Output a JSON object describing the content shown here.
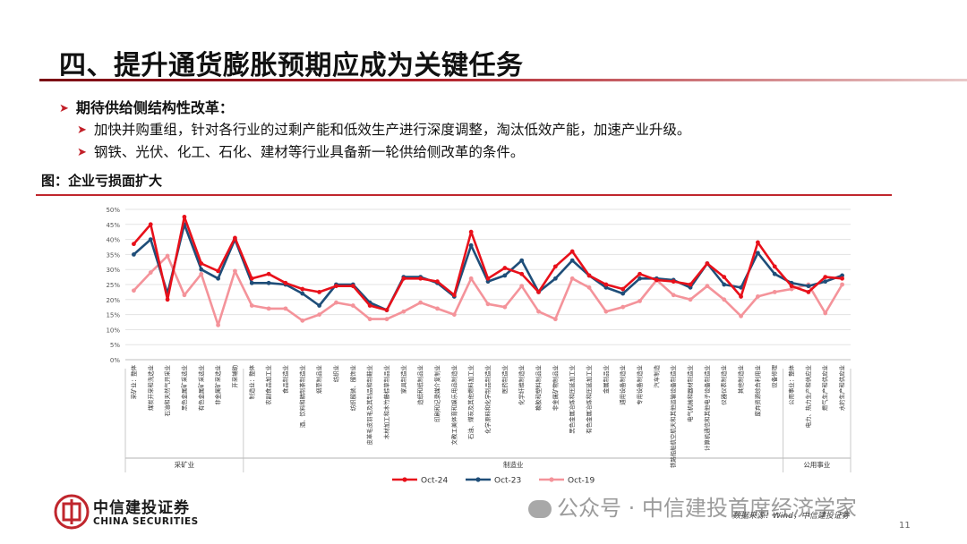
{
  "page": {
    "title": "四、提升通货膨胀预期应成为关键任务",
    "bullets": {
      "main": "期待供给侧结构性改革：",
      "sub1": "加快并购重组，针对各行业的过剩产能和低效生产进行深度调整，淘汰低效产能，加速产业升级。",
      "sub2": "钢铁、光伏、化工、石化、建材等行业具备新一轮供给侧改革的条件。"
    },
    "figure_title": "图：企业亏损面扩大",
    "source": "数据来源：Wind，中信建投证券",
    "page_number": "11",
    "logo": {
      "cn": "中信建投证券",
      "en": "CHINA SECURITIES"
    },
    "watermark": "公众号 · 中信建投首席经济学家"
  },
  "colors": {
    "oct24": "#e8101a",
    "oct23": "#1f4e79",
    "oct19": "#f4939a",
    "accent": "#c0262d"
  },
  "chart_data": {
    "type": "line",
    "title": "",
    "ylim": [
      0,
      50
    ],
    "yticks": [
      "0%",
      "5%",
      "10%",
      "15%",
      "20%",
      "25%",
      "30%",
      "35%",
      "40%",
      "45%",
      "50%"
    ],
    "grid": true,
    "legend_position": "bottom",
    "categories": [
      "采矿业：整体",
      "煤炭开采和洗选业",
      "石油和天然气开采业",
      "黑色金属矿采选业",
      "有色金属矿采选业",
      "非金属矿采选业",
      "开采辅助",
      "制造业：整体",
      "农副食品加工业",
      "食品制造业",
      "酒、饮料和精制茶制造业",
      "烟草制品业",
      "纺织业",
      "纺织服装、服饰业",
      "皮革毛皮羽毛及其制品和制鞋业",
      "木材加工和木竹藤棕草制品业",
      "家具制造业",
      "造纸和纸制品业",
      "印刷和记录媒介复制业",
      "文教工美体育和娱乐用品制造业",
      "石油、煤炭及其他燃料加工业",
      "化学原料和化学制品制造业",
      "医药制造业",
      "化学纤维制造业",
      "橡胶和塑料制品业",
      "非金属矿物制品业",
      "黑色金属冶炼和压延加工业",
      "有色金属冶炼和压延加工业",
      "金属制品业",
      "通用设备制造业",
      "专用设备制造业",
      "汽车制造",
      "铁路船舶航空航天和其他运输设备制造业",
      "电气机械和器材制造业",
      "计算机通信和其他电子设备制造业",
      "仪器仪表制造业",
      "其他制造业",
      "废弃资源综合利用业",
      "设备修理",
      "公用事业：整体",
      "电力、热力生产和供应业",
      "燃气生产和供应业",
      "水的生产和供应业"
    ],
    "groups": [
      {
        "name": "采矿业",
        "from": 0,
        "to": 6
      },
      {
        "name": "制造业",
        "from": 7,
        "to": 38
      },
      {
        "name": "公用事业",
        "from": 39,
        "to": 42
      }
    ],
    "series": [
      {
        "name": "Oct-24",
        "values": [
          38.5,
          45.0,
          20.0,
          47.5,
          32.0,
          29.5,
          40.5,
          27.0,
          28.5,
          25.5,
          23.5,
          22.5,
          24.5,
          24.5,
          18.0,
          16.5,
          27.0,
          27.0,
          26.0,
          21.5,
          42.5,
          27.0,
          30.5,
          28.5,
          22.5,
          31.0,
          36.0,
          28.0,
          25.0,
          23.5,
          28.5,
          26.5,
          26.0,
          25.0,
          32.0,
          27.5,
          21.0,
          39.0,
          31.0,
          24.5,
          22.5,
          27.5,
          27.0
        ]
      },
      {
        "name": "Oct-23",
        "values": [
          35.0,
          40.0,
          22.0,
          45.0,
          30.0,
          27.0,
          40.0,
          25.5,
          25.5,
          25.0,
          22.0,
          18.0,
          25.0,
          25.0,
          19.0,
          16.5,
          27.5,
          27.5,
          25.5,
          21.0,
          38.0,
          26.0,
          28.0,
          33.0,
          22.5,
          27.0,
          33.0,
          28.0,
          24.0,
          22.0,
          27.0,
          27.0,
          26.5,
          24.0,
          32.0,
          25.0,
          24.0,
          35.5,
          28.5,
          25.5,
          24.5,
          26.0,
          28.0
        ]
      },
      {
        "name": "Oct-19",
        "values": [
          23.0,
          29.0,
          34.5,
          21.5,
          28.5,
          11.5,
          29.5,
          18.0,
          17.0,
          17.0,
          13.0,
          15.0,
          19.0,
          18.0,
          13.5,
          13.5,
          16.0,
          19.0,
          17.0,
          15.0,
          27.0,
          18.5,
          17.5,
          24.5,
          16.0,
          13.5,
          27.0,
          24.0,
          16.0,
          17.5,
          19.5,
          26.5,
          21.5,
          20.0,
          24.5,
          20.0,
          14.5,
          21.0,
          22.5,
          23.5,
          25.0,
          15.5,
          25.0
        ]
      }
    ]
  }
}
